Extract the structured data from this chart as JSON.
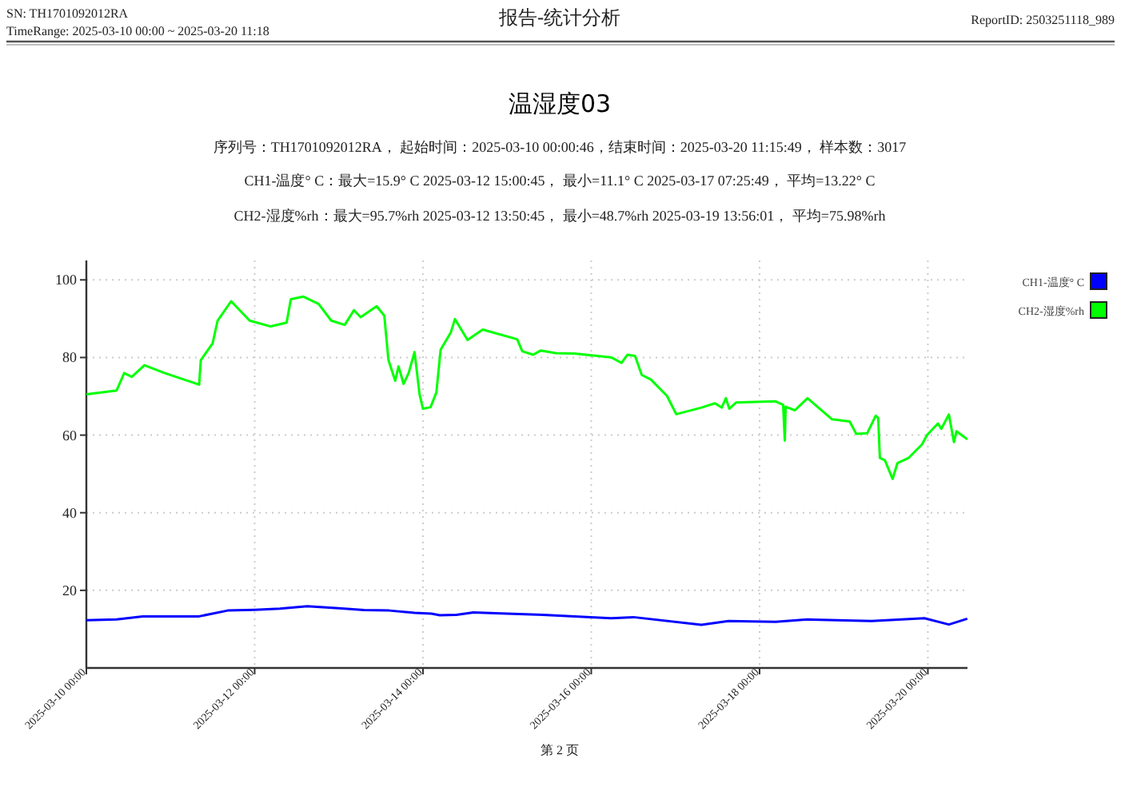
{
  "chart_data": {
    "type": "line",
    "title": "温湿度03",
    "annotations": [
      "SN: TH1701092012RA",
      "TimeRange: 2025-03-10 00:00 ~ 2025-03-20 11:18",
      "报告-统计分析",
      "ReportID: 2503251118_989",
      "序列号：TH1701092012RA， 起始时间：2025-03-10 00:00:46，结束时间：2025-03-20 11:15:49， 样本数：3017",
      "CH1-温度° C：最大=15.9° C 2025-03-12 15:00:45， 最小=11.1° C 2025-03-17 07:25:49， 平均=13.22° C",
      "CH2-湿度%rh：最大=95.7%rh 2025-03-12 13:50:45， 最小=48.7%rh 2025-03-19 13:56:01， 平均=75.98%rh",
      "第 2 页"
    ],
    "xlim": [
      "2025-03-10T00:00",
      "2025-03-20T11:18"
    ],
    "xticks": [
      {
        "value": "2025-03-10T00:00",
        "label": "2025-03-10 00:00"
      },
      {
        "value": "2025-03-12T00:00",
        "label": "2025-03-12 00:00"
      },
      {
        "value": "2025-03-14T00:00",
        "label": "2025-03-14 00:00"
      },
      {
        "value": "2025-03-16T00:00",
        "label": "2025-03-16 00:00"
      },
      {
        "value": "2025-03-18T00:00",
        "label": "2025-03-18 00:00"
      },
      {
        "value": "2025-03-20T00:00",
        "label": "2025-03-20 00:00"
      }
    ],
    "ylim": [
      0,
      105
    ],
    "yticks": [
      20,
      40,
      60,
      80,
      100
    ],
    "grid": true,
    "legend": "top right",
    "marker": "none",
    "line_style": "solid",
    "series": [
      {
        "name": "CH1-温度° C",
        "color": "#0000ff",
        "x": [
          "2025-03-10T00:00",
          "2025-03-10T08:38",
          "2025-03-10T16:05",
          "2025-03-11T08:10",
          "2025-03-11T16:19",
          "2025-03-12T00:00",
          "2025-03-12T07:12",
          "2025-03-12T15:00",
          "2025-03-13T00:00",
          "2025-03-13T07:12",
          "2025-03-13T14:24",
          "2025-03-13T21:36",
          "2025-03-14T02:24",
          "2025-03-14T04:48",
          "2025-03-14T09:36",
          "2025-03-14T14:24",
          "2025-03-15T00:00",
          "2025-03-15T10:05",
          "2025-03-16T05:46",
          "2025-03-16T12:00",
          "2025-03-17T07:25",
          "2025-03-17T15:07",
          "2025-03-18T04:34",
          "2025-03-18T13:41",
          "2025-03-19T07:55",
          "2025-03-19T23:02",
          "2025-03-20T06:00",
          "2025-03-20T11:15"
        ],
        "values": [
          12.3,
          12.5,
          13.3,
          13.3,
          14.8,
          15.0,
          15.3,
          15.9,
          15.4,
          14.9,
          14.8,
          14.2,
          14.0,
          13.6,
          13.7,
          14.3,
          14.0,
          13.7,
          12.8,
          13.1,
          11.1,
          12.1,
          11.9,
          12.5,
          12.1,
          12.8,
          11.2,
          12.7
        ]
      },
      {
        "name": "CH2-湿度%rh",
        "color": "#00ff00",
        "x": [
          "2025-03-10T00:00",
          "2025-03-10T08:38",
          "2025-03-10T10:48",
          "2025-03-10T12:58",
          "2025-03-10T16:34",
          "2025-03-10T22:19",
          "2025-03-11T08:10",
          "2025-03-11T08:38",
          "2025-03-11T12:00",
          "2025-03-11T13:26",
          "2025-03-11T17:17",
          "2025-03-11T22:34",
          "2025-03-12T04:34",
          "2025-03-12T09:07",
          "2025-03-12T10:19",
          "2025-03-12T13:50",
          "2025-03-12T18:14",
          "2025-03-12T21:50",
          "2025-03-13T01:41",
          "2025-03-13T04:19",
          "2025-03-13T06:14",
          "2025-03-13T10:48",
          "2025-03-13T12:58",
          "2025-03-13T14:10",
          "2025-03-13T16:05",
          "2025-03-13T17:02",
          "2025-03-13T18:29",
          "2025-03-13T19:55",
          "2025-03-13T21:36",
          "2025-03-13T23:02",
          "2025-03-14T00:00",
          "2025-03-14T02:10",
          "2025-03-14T03:50",
          "2025-03-14T05:02",
          "2025-03-14T07:55",
          "2025-03-14T09:07",
          "2025-03-14T12:43",
          "2025-03-14T17:02",
          "2025-03-15T02:53",
          "2025-03-15T04:19",
          "2025-03-15T07:26",
          "2025-03-15T09:36",
          "2025-03-15T13:55",
          "2025-03-15T19:12",
          "2025-03-16T05:46",
          "2025-03-16T08:38",
          "2025-03-16T10:19",
          "2025-03-16T12:29",
          "2025-03-16T14:24",
          "2025-03-16T17:02",
          "2025-03-16T21:36",
          "2025-03-17T00:14",
          "2025-03-17T07:26",
          "2025-03-17T11:17",
          "2025-03-17T13:12",
          "2025-03-17T14:24",
          "2025-03-17T15:22",
          "2025-03-17T17:17",
          "2025-03-18T04:34",
          "2025-03-18T06:43",
          "2025-03-18T07:12",
          "2025-03-18T07:26",
          "2025-03-18T10:05",
          "2025-03-18T13:41",
          "2025-03-18T20:38",
          "2025-03-19T01:41",
          "2025-03-19T03:36",
          "2025-03-19T06:43",
          "2025-03-19T09:07",
          "2025-03-19T09:50",
          "2025-03-19T10:19",
          "2025-03-19T11:46",
          "2025-03-19T13:56",
          "2025-03-19T15:20",
          "2025-03-19T18:29",
          "2025-03-19T22:19",
          "2025-03-19T23:46",
          "2025-03-20T02:53",
          "2025-03-20T03:50",
          "2025-03-20T06:00",
          "2025-03-20T07:26",
          "2025-03-20T08:10",
          "2025-03-20T11:15"
        ],
        "values": [
          70.5,
          71.5,
          76,
          75,
          78,
          76,
          73,
          79.3,
          83.6,
          89.5,
          94.5,
          89.5,
          88,
          89,
          95,
          95.7,
          93.8,
          89.5,
          88.4,
          92.2,
          90.4,
          93.2,
          90.8,
          79.3,
          74,
          77.7,
          73.2,
          76,
          81.4,
          70.5,
          66.8,
          67.2,
          71,
          82,
          86.4,
          89.9,
          84.5,
          87.2,
          84.7,
          81.6,
          80.7,
          81.8,
          81.1,
          81,
          80,
          78.6,
          80.7,
          80.4,
          75.5,
          74.3,
          70.1,
          65.4,
          67.1,
          68.2,
          67.1,
          69.5,
          66.8,
          68.4,
          68.7,
          67.8,
          58.6,
          67.3,
          66.4,
          69.5,
          64.1,
          63.5,
          60.3,
          60.5,
          65,
          64.4,
          54.1,
          53.5,
          48.7,
          52.8,
          54.1,
          57.6,
          60,
          63,
          61.6,
          65.3,
          58.2,
          61,
          58.9
        ]
      }
    ]
  }
}
